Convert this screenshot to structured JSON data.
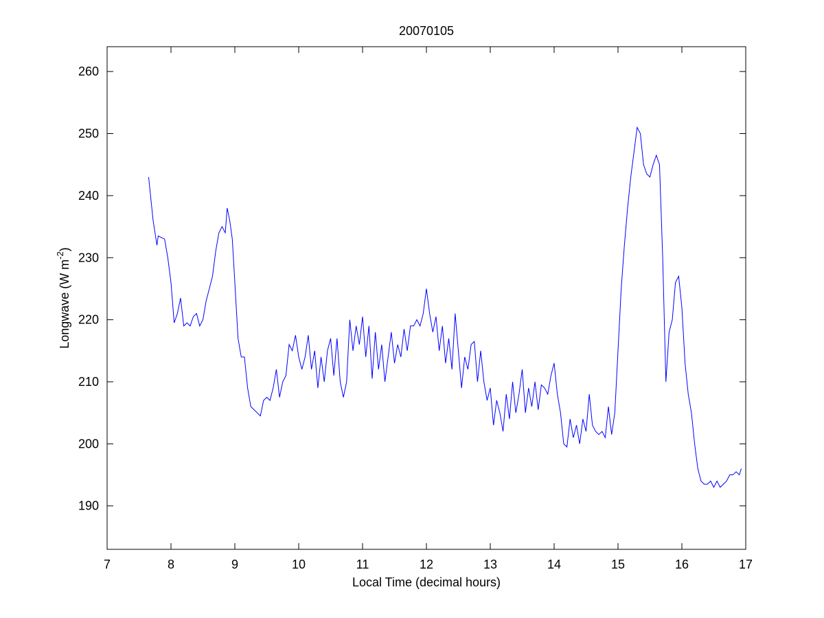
{
  "chart_data": {
    "type": "line",
    "title": "20070105",
    "xlabel": "Local Time (decimal hours)",
    "ylabel": [
      "Longwave (W m",
      "-2",
      ")"
    ],
    "xlim": [
      7,
      17
    ],
    "xticks": [
      7,
      8,
      9,
      10,
      11,
      12,
      13,
      14,
      15,
      16,
      17
    ],
    "ylim": [
      183,
      264
    ],
    "yticks": [
      190,
      200,
      210,
      220,
      230,
      240,
      250,
      260
    ],
    "series": [
      {
        "color": "#0000ff",
        "x": [
          7.65,
          7.72,
          7.78,
          7.8,
          7.9,
          7.95,
          8.0,
          8.05,
          8.1,
          8.15,
          8.2,
          8.25,
          8.3,
          8.35,
          8.4,
          8.45,
          8.5,
          8.55,
          8.6,
          8.65,
          8.7,
          8.75,
          8.8,
          8.85,
          8.88,
          8.92,
          8.96,
          9.0,
          9.05,
          9.1,
          9.15,
          9.2,
          9.25,
          9.3,
          9.35,
          9.4,
          9.45,
          9.5,
          9.55,
          9.6,
          9.65,
          9.7,
          9.75,
          9.8,
          9.85,
          9.9,
          9.95,
          10.0,
          10.05,
          10.1,
          10.15,
          10.2,
          10.25,
          10.3,
          10.35,
          10.4,
          10.45,
          10.5,
          10.55,
          10.6,
          10.65,
          10.7,
          10.75,
          10.8,
          10.85,
          10.9,
          10.95,
          11.0,
          11.05,
          11.1,
          11.15,
          11.2,
          11.25,
          11.3,
          11.35,
          11.4,
          11.45,
          11.5,
          11.55,
          11.6,
          11.65,
          11.7,
          11.75,
          11.8,
          11.85,
          11.9,
          11.95,
          12.0,
          12.05,
          12.1,
          12.15,
          12.2,
          12.25,
          12.3,
          12.35,
          12.4,
          12.45,
          12.5,
          12.55,
          12.6,
          12.65,
          12.7,
          12.75,
          12.8,
          12.85,
          12.9,
          12.95,
          13.0,
          13.05,
          13.1,
          13.15,
          13.2,
          13.25,
          13.3,
          13.35,
          13.4,
          13.45,
          13.5,
          13.55,
          13.6,
          13.65,
          13.7,
          13.75,
          13.8,
          13.85,
          13.9,
          13.95,
          14.0,
          14.05,
          14.1,
          14.15,
          14.2,
          14.25,
          14.3,
          14.35,
          14.4,
          14.45,
          14.5,
          14.55,
          14.6,
          14.65,
          14.7,
          14.75,
          14.8,
          14.85,
          14.9,
          14.95,
          15.0,
          15.05,
          15.1,
          15.15,
          15.2,
          15.25,
          15.3,
          15.35,
          15.4,
          15.45,
          15.5,
          15.55,
          15.6,
          15.65,
          15.7,
          15.75,
          15.8,
          15.85,
          15.9,
          15.95,
          16.0,
          16.05,
          16.1,
          16.15,
          16.2,
          16.25,
          16.3,
          16.35,
          16.4,
          16.45,
          16.5,
          16.55,
          16.6,
          16.65,
          16.7,
          16.75,
          16.8,
          16.85,
          16.9,
          16.93
        ],
        "values": [
          243,
          236,
          232,
          233.5,
          233,
          230,
          226,
          219.5,
          221,
          223.5,
          219,
          219.5,
          219,
          220.5,
          221,
          219,
          220,
          223,
          225,
          227,
          231,
          234,
          235,
          234,
          238,
          236,
          233,
          226,
          217,
          214,
          214,
          209,
          206,
          205.5,
          205,
          204.5,
          207,
          207.5,
          207,
          209,
          212,
          207.5,
          210,
          211,
          216,
          215,
          217.5,
          214,
          212,
          214,
          217.5,
          212,
          215,
          209,
          214,
          210,
          215,
          217,
          211,
          217,
          210,
          207.5,
          210,
          220,
          215,
          219,
          216,
          220.5,
          214,
          219,
          210.5,
          218,
          212,
          216,
          210,
          214,
          218,
          213,
          216,
          214,
          218.5,
          215,
          219,
          219,
          220,
          219,
          221,
          225,
          221,
          218,
          220.5,
          215,
          219,
          213,
          217,
          212,
          221,
          215,
          209,
          214,
          212,
          216,
          216.5,
          210,
          215,
          210,
          207,
          209,
          203,
          207,
          205,
          202,
          208,
          204,
          210,
          205,
          208,
          212,
          205,
          209,
          206,
          210,
          205.5,
          209.5,
          209,
          208,
          211,
          213,
          208,
          205,
          200,
          199.5,
          204,
          201,
          203,
          200,
          204,
          202,
          208,
          203,
          202,
          201.5,
          202,
          201,
          206,
          201.5,
          205,
          215,
          225,
          232,
          238,
          243,
          247,
          251,
          250,
          245,
          243.5,
          243,
          245,
          246.5,
          245,
          230,
          210,
          218,
          220,
          226,
          227,
          222,
          213,
          208,
          205,
          200,
          196,
          194,
          193.5,
          193.5,
          194,
          193,
          194,
          193,
          193.5,
          194,
          195,
          195,
          195.5,
          195,
          196
        ]
      }
    ]
  }
}
